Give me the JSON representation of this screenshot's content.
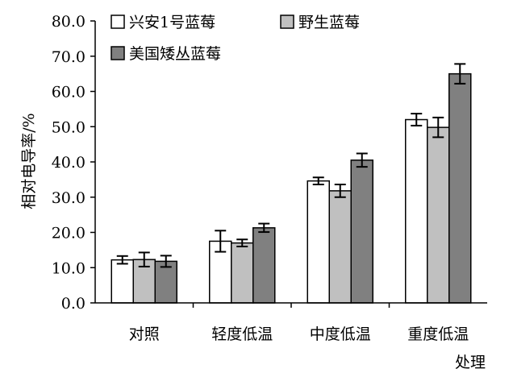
{
  "chart_data": {
    "type": "bar",
    "title": "",
    "xlabel": "处理",
    "ylabel": "相对电导率/%",
    "ylim": [
      0,
      80
    ],
    "ytick_step": 10,
    "ytick_labels": [
      "0.0",
      "10.0",
      "20.0",
      "30.0",
      "40.0",
      "50.0",
      "60.0",
      "70.0",
      "80.0"
    ],
    "categories": [
      "对照",
      "轻度低温",
      "中度低温",
      "重度低温"
    ],
    "series": [
      {
        "name": "兴安1号蓝莓",
        "color": "#ffffff",
        "values": [
          12.2,
          17.5,
          34.6,
          52.0
        ],
        "errors": [
          1.1,
          3.0,
          1.0,
          1.7
        ]
      },
      {
        "name": "野生蓝莓",
        "color": "#c0c0c0",
        "values": [
          12.3,
          17.0,
          31.8,
          49.8
        ],
        "errors": [
          2.0,
          1.0,
          1.8,
          2.8
        ]
      },
      {
        "name": "美国矮丛蓝莓",
        "color": "#808080",
        "values": [
          11.8,
          21.3,
          40.5,
          65.0
        ],
        "errors": [
          1.6,
          1.2,
          1.9,
          2.8
        ]
      }
    ],
    "error_bars": true,
    "grid": false,
    "legend_position": "top-left"
  }
}
